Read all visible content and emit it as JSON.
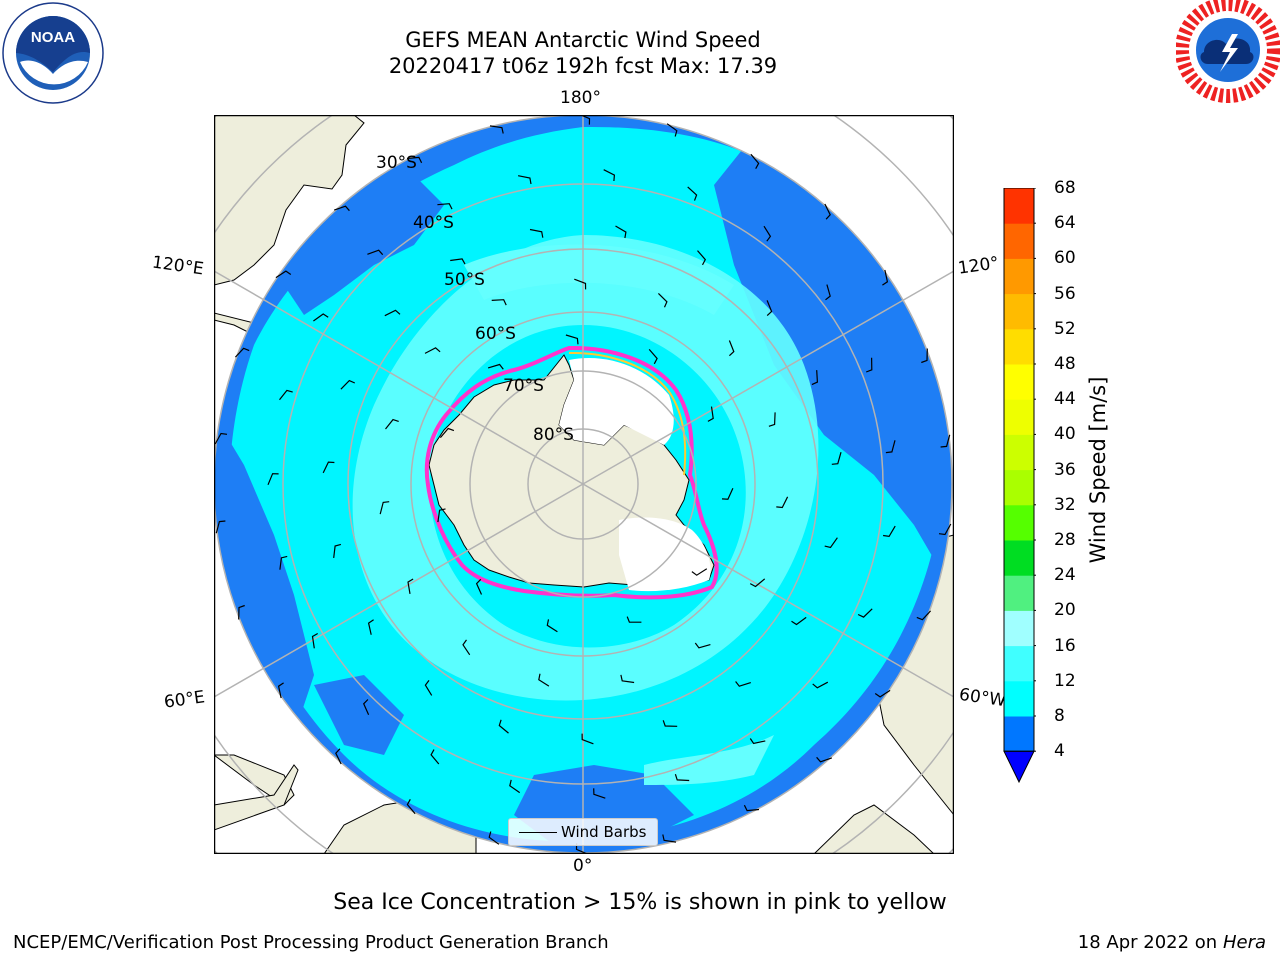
{
  "title_line1": "GEFS MEAN Antarctic Wind Speed",
  "title_line2": "20220417 t06z 192h fcst   Max: 17.39",
  "caption": "Sea Ice Concentration > 15% is shown in pink to yellow",
  "footer": {
    "branch": "NCEP/EMC/Verification Post Processing Product Generation Branch",
    "date": "18 Apr 2022 on",
    "system": "Hera"
  },
  "logos": {
    "noara_name": "NOAA",
    "noara_ring": "NATIONAL OCEANIC AND ATMOSPHERIC ADMINISTRATION · U.S. DEPARTMENT OF COMMERCE",
    "nws_ring": "NATIONAL WEATHER SERVICE"
  },
  "map": {
    "projection": "south-polar-stereographic",
    "lon_labels": {
      "top": "180°",
      "bottom": "0°",
      "left_upper": "120°E",
      "left_lower": "60°E",
      "right_upper": "120°",
      "right_lower": "60°W"
    },
    "lat_labels": [
      "30°S",
      "40°S",
      "50°S",
      "60°S",
      "70°S",
      "80°S"
    ],
    "legend": "Wind Barbs",
    "colors": {
      "land": "#eeeedc",
      "ocean_low": "#1e7ef5",
      "ocean_mid": "#00f5ff",
      "ocean_high": "#64ffff",
      "sea_ice_edge": "#ff33cc",
      "grid": "#b3b3b3"
    }
  },
  "colorbar": {
    "label": "Wind Speed [m/s]",
    "ticks": [
      "4",
      "8",
      "12",
      "16",
      "20",
      "24",
      "28",
      "32",
      "36",
      "40",
      "44",
      "48",
      "52",
      "56",
      "60",
      "64",
      "68"
    ],
    "colors": [
      "#0077ff",
      "#00ffff",
      "#40ffff",
      "#a0ffff",
      "#50f080",
      "#00dd22",
      "#55ff00",
      "#aaff00",
      "#ccff00",
      "#eeff00",
      "#ffff00",
      "#ffdd00",
      "#ffbb00",
      "#ff9900",
      "#ff6600",
      "#ff3300",
      "#ff0000"
    ],
    "extend_color": "#0000ff"
  }
}
